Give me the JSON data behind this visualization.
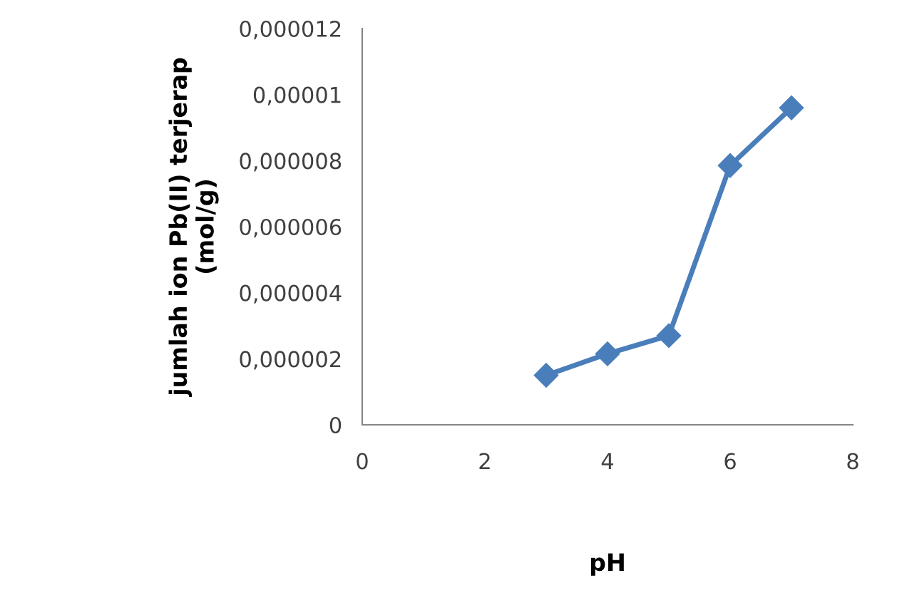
{
  "chart_data": {
    "type": "line",
    "xlabel": "pH",
    "ylabel": "jumlah ion Pb(II) terjerap\n(mol/g)",
    "x": [
      3,
      4,
      5,
      6,
      7
    ],
    "series": [
      {
        "color": "#4a7ebb",
        "values": [
          1.5e-06,
          2.15e-06,
          2.7e-06,
          7.85e-06,
          9.6e-06
        ]
      }
    ],
    "xlim": [
      0,
      8
    ],
    "xticks": [
      0,
      2,
      4,
      6,
      8
    ],
    "ylim": [
      0,
      1.2e-05
    ],
    "yticks": [
      {
        "value": 0,
        "label": "0"
      },
      {
        "value": 2e-06,
        "label": "0,000002"
      },
      {
        "value": 4e-06,
        "label": "0,000004"
      },
      {
        "value": 6e-06,
        "label": "0,000006"
      },
      {
        "value": 8e-06,
        "label": "0,000008"
      },
      {
        "value": 1e-05,
        "label": "0,00001"
      },
      {
        "value": 1.2e-05,
        "label": "0,000012"
      }
    ],
    "grid": false,
    "legend": false,
    "marker": "diamond",
    "line_style": "solid"
  }
}
